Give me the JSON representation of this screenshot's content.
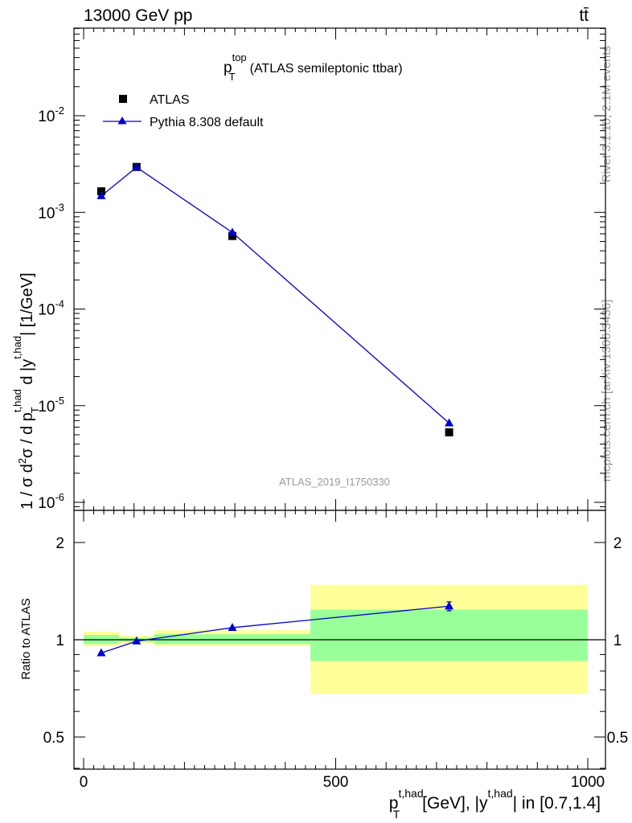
{
  "header": {
    "left": "13000 GeV pp",
    "right": "tt̄"
  },
  "side": {
    "rivet": "Rivet 3.1.10,  2.1M events",
    "mcplots": "mcplots.cern.ch [arXiv:1306.3436]"
  },
  "chart_data": [
    {
      "type": "scatter",
      "title_main": "p",
      "title_sup": "top",
      "title_sub": "T",
      "title_rest": "(ATLAS semileptonic ttbar)",
      "watermark": "ATLAS_2019_I1750330",
      "ylabel": "1 / σ d²σ / d p_T^{t,had} d |y^{t,had}| [1/GeV]",
      "yscale": "log",
      "ylim": [
        8e-07,
        0.08
      ],
      "xlim": [
        -25,
        1000
      ],
      "ytick_labels": [
        {
          "base": "10",
          "exp": "-6",
          "value": 1e-06
        },
        {
          "base": "10",
          "exp": "-5",
          "value": 1e-05
        },
        {
          "base": "10",
          "exp": "-4",
          "value": 0.0001
        },
        {
          "base": "10",
          "exp": "-3",
          "value": 0.001
        },
        {
          "base": "10",
          "exp": "-2",
          "value": 0.01
        }
      ],
      "legend_position": "top-left",
      "series": [
        {
          "name": "ATLAS",
          "marker": "square",
          "color": "#000000",
          "x": [
            35,
            105,
            295,
            725
          ],
          "y": [
            0.00165,
            0.00295,
            0.00057,
            5.3e-06
          ]
        },
        {
          "name": "Pythia 8.308 default",
          "marker": "triangle",
          "color": "#0000cc",
          "x": [
            35,
            105,
            295,
            725
          ],
          "y": [
            0.00148,
            0.00293,
            0.00062,
            6.6e-06
          ]
        }
      ]
    },
    {
      "type": "line",
      "ylabel": "Ratio to ATLAS",
      "yscale": "log",
      "ylim": [
        0.38,
        2.5
      ],
      "xlim": [
        -25,
        1000
      ],
      "ytick_labels": [
        {
          "label": "0.5",
          "value": 0.5
        },
        {
          "label": "1",
          "value": 1
        },
        {
          "label": "2",
          "value": 2
        }
      ],
      "xtick_labels": [
        {
          "label": "0",
          "value": 0
        },
        {
          "label": "500",
          "value": 500
        },
        {
          "label": "1000",
          "value": 1000
        }
      ],
      "xlabel_main": "p",
      "xlabel_sup": "t,had",
      "xlabel_sub": "T",
      "xlabel_mid": "[GeV], |y",
      "xlabel_sup2": "t,had",
      "xlabel_end": "| in [0.7,1.4]",
      "bands": [
        {
          "x0": 0,
          "x1": 70,
          "green": [
            0.97,
            1.035
          ],
          "yellow": [
            0.955,
            1.06
          ]
        },
        {
          "x0": 70,
          "x1": 140,
          "green": [
            0.985,
            1.015
          ],
          "yellow": [
            0.975,
            1.03
          ]
        },
        {
          "x0": 140,
          "x1": 450,
          "green": [
            0.97,
            1.04
          ],
          "yellow": [
            0.955,
            1.07
          ]
        },
        {
          "x0": 450,
          "x1": 1000,
          "green": [
            0.86,
            1.24
          ],
          "yellow": [
            0.68,
            1.48
          ]
        }
      ],
      "band_colors": {
        "green": "#99ff99",
        "yellow": "#ffff99"
      },
      "series": [
        {
          "name": "Pythia 8.308 default",
          "marker": "triangle",
          "color": "#0000cc",
          "x": [
            35,
            105,
            295,
            725
          ],
          "y": [
            0.91,
            0.99,
            1.09,
            1.27
          ],
          "yerr": [
            0,
            0,
            0,
            0.04
          ]
        }
      ]
    }
  ]
}
